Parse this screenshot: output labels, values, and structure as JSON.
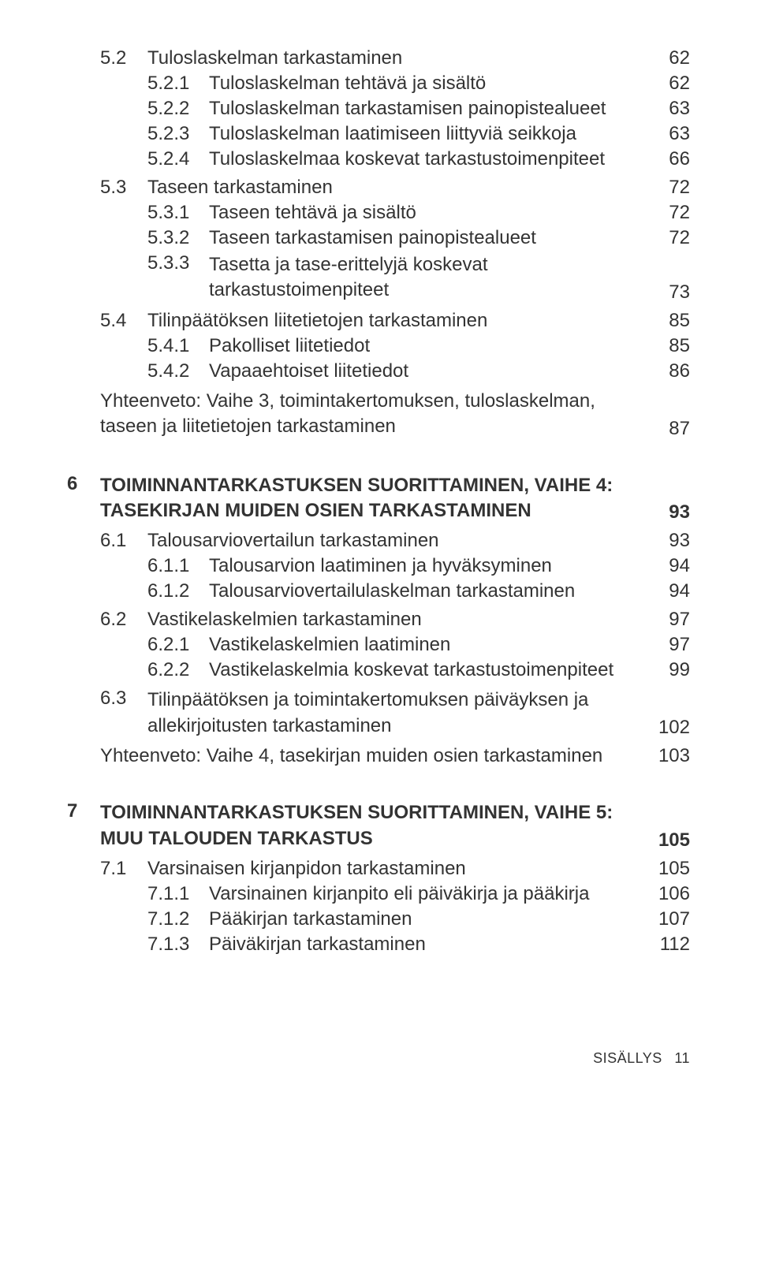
{
  "colors": {
    "text": "#333333",
    "background": "#ffffff"
  },
  "typography": {
    "body_fontsize": 24,
    "footer_fontsize": 18,
    "heading_weight": 700,
    "body_weight": 400
  },
  "footer": {
    "label": "SISÄLLYS",
    "page": "11"
  },
  "toc": {
    "s52_num": "5.2",
    "s52_title": "Tuloslaskelman tarkastaminen",
    "s52_page": "62",
    "s521_num": "5.2.1",
    "s521_title": "Tuloslaskelman tehtävä ja sisältö",
    "s521_page": "62",
    "s522_num": "5.2.2",
    "s522_title": "Tuloslaskelman tarkastamisen painopistealueet",
    "s522_page": "63",
    "s523_num": "5.2.3",
    "s523_title": "Tuloslaskelman laatimiseen liittyviä seikkoja",
    "s523_page": "63",
    "s524_num": "5.2.4",
    "s524_title": "Tuloslaskelmaa koskevat tarkastustoimenpiteet",
    "s524_page": "66",
    "s53_num": "5.3",
    "s53_title": "Taseen tarkastaminen",
    "s53_page": "72",
    "s531_num": "5.3.1",
    "s531_title": "Taseen tehtävä ja sisältö",
    "s531_page": "72",
    "s532_num": "5.3.2",
    "s532_title": "Taseen tarkastamisen painopistealueet",
    "s532_page": "72",
    "s533_num": "5.3.3",
    "s533_title": "Tasetta ja tase-erittelyjä koskevat tarkastustoimenpiteet",
    "s533_page": "73",
    "s54_num": "5.4",
    "s54_title": "Tilinpäätöksen liitetietojen tarkastaminen",
    "s54_page": "85",
    "s541_num": "5.4.1",
    "s541_title": "Pakolliset liitetiedot",
    "s541_page": "85",
    "s542_num": "5.4.2",
    "s542_title": "Vapaaehtoiset liitetiedot",
    "s542_page": "86",
    "sum5_title": "Yhteenveto: Vaihe 3, toimintakertomuksen, tuloslaskelman, taseen ja liitetietojen tarkastaminen",
    "sum5_page": "87",
    "c6_num": "6",
    "c6_title": "TOIMINNANTARKASTUKSEN SUORITTAMINEN, VAIHE 4: TASEKIRJAN MUIDEN OSIEN TARKASTAMINEN",
    "c6_page": "93",
    "s61_num": "6.1",
    "s61_title": "Talousarviovertailun tarkastaminen",
    "s61_page": "93",
    "s611_num": "6.1.1",
    "s611_title": "Talousarvion laatiminen ja hyväksyminen",
    "s611_page": "94",
    "s612_num": "6.1.2",
    "s612_title": "Talousarviovertailulaskelman tarkastaminen",
    "s612_page": "94",
    "s62_num": "6.2",
    "s62_title": "Vastikelaskelmien tarkastaminen",
    "s62_page": "97",
    "s621_num": "6.2.1",
    "s621_title": "Vastikelaskelmien laatiminen",
    "s621_page": "97",
    "s622_num": "6.2.2",
    "s622_title": "Vastikelaskelmia koskevat tarkastustoimenpiteet",
    "s622_page": "99",
    "s63_num": "6.3",
    "s63_title": "Tilinpäätöksen ja toimintakertomuksen päiväyksen ja allekirjoitusten tarkastaminen",
    "s63_page": "102",
    "sum6_title": "Yhteenveto: Vaihe 4, tasekirjan muiden osien tarkastaminen",
    "sum6_page": "103",
    "c7_num": "7",
    "c7_title": "TOIMINNANTARKASTUKSEN SUORITTAMINEN, VAIHE 5: MUU TALOUDEN TARKASTUS",
    "c7_page": "105",
    "s71_num": "7.1",
    "s71_title": "Varsinaisen kirjanpidon tarkastaminen",
    "s71_page": "105",
    "s711_num": "7.1.1",
    "s711_title": "Varsinainen kirjanpito eli päiväkirja ja pääkirja",
    "s711_page": "106",
    "s712_num": "7.1.2",
    "s712_title": "Pääkirjan tarkastaminen",
    "s712_page": "107",
    "s713_num": "7.1.3",
    "s713_title": "Päiväkirjan tarkastaminen",
    "s713_page": "112"
  }
}
